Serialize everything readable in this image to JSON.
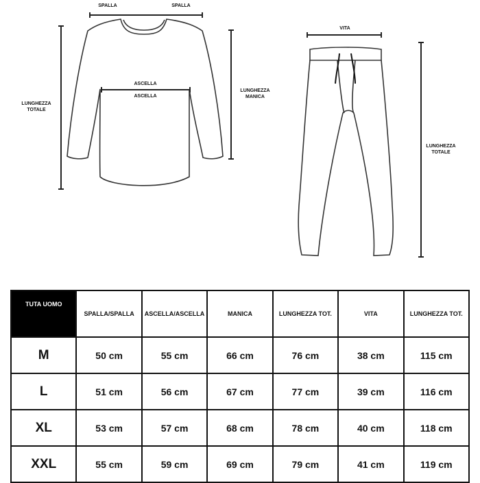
{
  "diagram": {
    "shirt_labels": {
      "shoulder_left": "SPALLA",
      "shoulder_right": "SPALLA",
      "armpit_top": "ASCELLA",
      "armpit_bottom": "ASCELLA",
      "total_length": "LUNGHEZZA\nTOTALE",
      "sleeve_length": "LUNGHEZZA\nMANICA"
    },
    "pants_labels": {
      "waist": "VITA",
      "total_length": "LUNGHEZZA\nTOTALE"
    }
  },
  "table": {
    "headers": [
      "TUTA UOMO",
      "SPALLA/SPALLA",
      "ASCELLA/ASCELLA",
      "MANICA",
      "LUNGHEZZA TOT.",
      "VITA",
      "LUNGHEZZA TOT."
    ],
    "rows": [
      [
        "M",
        "50 cm",
        "55 cm",
        "66 cm",
        "76 cm",
        "38 cm",
        "115 cm"
      ],
      [
        "L",
        "51 cm",
        "56 cm",
        "67 cm",
        "77 cm",
        "39 cm",
        "116 cm"
      ],
      [
        "XL",
        "53 cm",
        "57 cm",
        "68 cm",
        "78 cm",
        "40 cm",
        "118 cm"
      ],
      [
        "XXL",
        "55 cm",
        "59 cm",
        "69 cm",
        "79 cm",
        "41 cm",
        "119 cm"
      ]
    ]
  }
}
